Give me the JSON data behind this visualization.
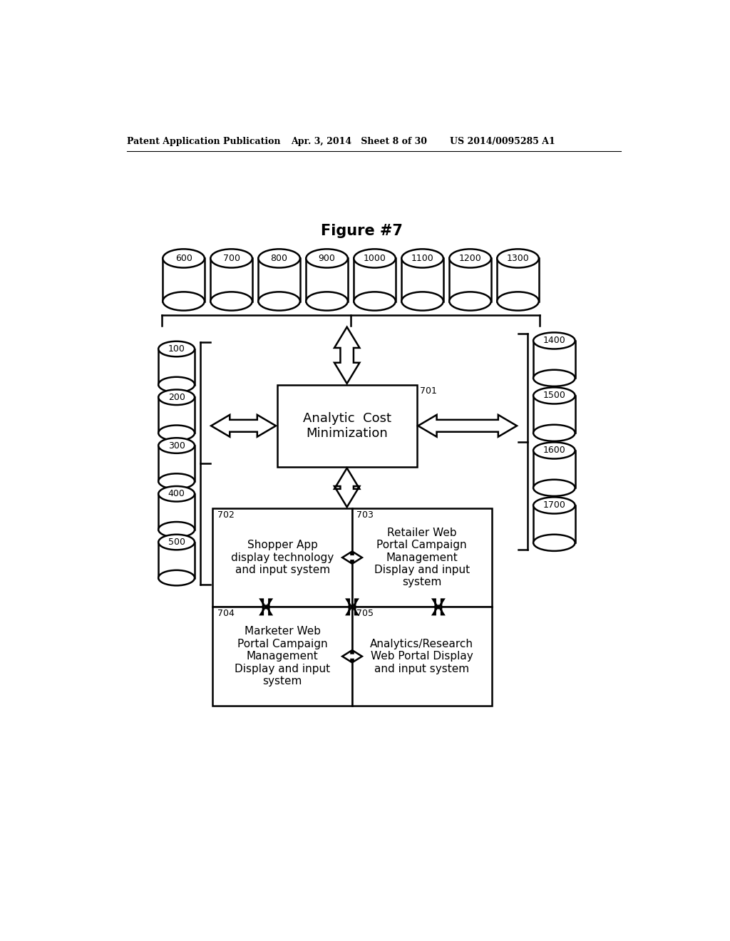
{
  "title": "Figure #7",
  "header_left": "Patent Application Publication",
  "header_mid": "Apr. 3, 2014   Sheet 8 of 30",
  "header_right": "US 2014/0095285 A1",
  "top_cylinders": [
    "600",
    "700",
    "800",
    "900",
    "1000",
    "1100",
    "1200",
    "1300"
  ],
  "left_cylinders": [
    "100",
    "200",
    "300",
    "400",
    "500"
  ],
  "right_cylinders": [
    "1400",
    "1500",
    "1600",
    "1700"
  ],
  "box_701_label": "Analytic  Cost\nMinimization",
  "box_701_num": "701",
  "box_702_label": "Shopper App\ndisplay technology\nand input system",
  "box_702_num": "702",
  "box_703_label": "Retailer Web\nPortal Campaign\nManagement\nDisplay and input\nsystem",
  "box_703_num": "703",
  "box_704_label": "Marketer Web\nPortal Campaign\nManagement\nDisplay and input\nsystem",
  "box_704_num": "704",
  "box_705_label": "Analytics/Research\nWeb Portal Display\nand input system",
  "box_705_num": "705",
  "bg_color": "#ffffff",
  "line_color": "#000000"
}
